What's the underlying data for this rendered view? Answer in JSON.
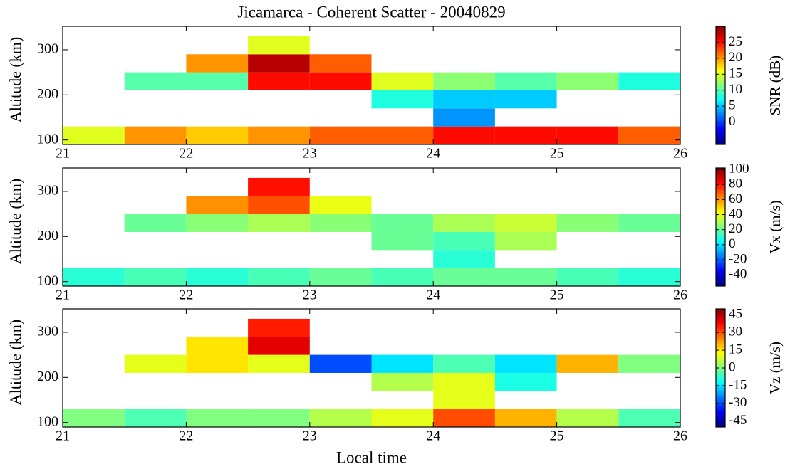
{
  "chart_data": [
    {
      "type": "heatmap",
      "title": "Jicamarca - Coherent Scatter - 20040829",
      "ylabel": "Altitude (km)",
      "x": [
        21.25,
        21.75,
        22.25,
        22.75,
        23.25,
        23.75,
        24.25,
        24.75,
        25.25,
        25.75
      ],
      "y": [
        110,
        150,
        190,
        230,
        270,
        310
      ],
      "z": [
        [
          15,
          20,
          18,
          20,
          22,
          22,
          25,
          25,
          25,
          22
        ],
        [
          null,
          null,
          null,
          null,
          null,
          null,
          3,
          null,
          null,
          null
        ],
        [
          null,
          null,
          null,
          null,
          null,
          8,
          5,
          5,
          null,
          null
        ],
        [
          null,
          10,
          10,
          25,
          25,
          15,
          12,
          10,
          12,
          8
        ],
        [
          null,
          null,
          20,
          28,
          22,
          null,
          null,
          null,
          null,
          null
        ],
        [
          null,
          null,
          null,
          15,
          null,
          null,
          null,
          null,
          null,
          null
        ]
      ],
      "xlim": [
        21,
        26
      ],
      "xticks": [
        21,
        22,
        23,
        24,
        25,
        26
      ],
      "ylim": [
        90,
        352
      ],
      "yticks": [
        100,
        200,
        300
      ],
      "colormap": "jet",
      "colorbar": {
        "label": "SNR (dB)",
        "clim": [
          -7,
          30
        ],
        "ticks": [
          0,
          5,
          10,
          15,
          20,
          25
        ]
      }
    },
    {
      "type": "heatmap",
      "ylabel": "Altitude (km)",
      "x": [
        21.25,
        21.75,
        22.25,
        22.75,
        23.25,
        23.75,
        24.25,
        24.75,
        25.25,
        25.75
      ],
      "y": [
        110,
        150,
        190,
        230,
        270,
        310
      ],
      "z": [
        [
          10,
          15,
          10,
          15,
          20,
          15,
          20,
          20,
          15,
          10
        ],
        [
          null,
          null,
          null,
          null,
          null,
          null,
          10,
          null,
          null,
          null
        ],
        [
          null,
          null,
          null,
          null,
          null,
          20,
          15,
          30,
          null,
          null
        ],
        [
          null,
          20,
          25,
          30,
          25,
          20,
          30,
          35,
          25,
          20
        ],
        [
          null,
          null,
          60,
          70,
          40,
          null,
          null,
          null,
          null,
          null
        ],
        [
          null,
          null,
          null,
          80,
          null,
          null,
          null,
          null,
          null,
          null
        ]
      ],
      "xlim": [
        21,
        26
      ],
      "xticks": [
        21,
        22,
        23,
        24,
        25,
        26
      ],
      "ylim": [
        90,
        352
      ],
      "yticks": [
        100,
        200,
        300
      ],
      "colormap": "jet",
      "colorbar": {
        "label": "Vx (m/s)",
        "clim": [
          -55,
          102
        ],
        "ticks": [
          -40,
          -20,
          0,
          20,
          40,
          60,
          80,
          100
        ]
      }
    },
    {
      "type": "heatmap",
      "ylabel": "Altitude (km)",
      "xlabel": "Local time",
      "x": [
        21.25,
        21.75,
        22.25,
        22.75,
        23.25,
        23.75,
        24.25,
        24.75,
        25.25,
        25.75
      ],
      "y": [
        110,
        150,
        190,
        230,
        270,
        310
      ],
      "z": [
        [
          0,
          -5,
          0,
          0,
          5,
          10,
          30,
          20,
          5,
          -5
        ],
        [
          null,
          null,
          null,
          null,
          null,
          null,
          10,
          null,
          null,
          null
        ],
        [
          null,
          null,
          null,
          null,
          null,
          5,
          10,
          -10,
          null,
          null
        ],
        [
          null,
          10,
          15,
          10,
          -30,
          -15,
          -5,
          -15,
          20,
          0
        ],
        [
          null,
          null,
          15,
          40,
          null,
          null,
          null,
          null,
          null,
          null
        ],
        [
          null,
          null,
          null,
          35,
          null,
          null,
          null,
          null,
          null,
          null
        ]
      ],
      "xlim": [
        21,
        26
      ],
      "xticks": [
        21,
        22,
        23,
        24,
        25,
        26
      ],
      "ylim": [
        90,
        352
      ],
      "yticks": [
        100,
        200,
        300
      ],
      "colormap": "jet",
      "colorbar": {
        "label": "Vz (m/s)",
        "clim": [
          -50,
          50
        ],
        "ticks": [
          -45,
          -30,
          -15,
          0,
          15,
          30,
          45
        ]
      }
    }
  ]
}
